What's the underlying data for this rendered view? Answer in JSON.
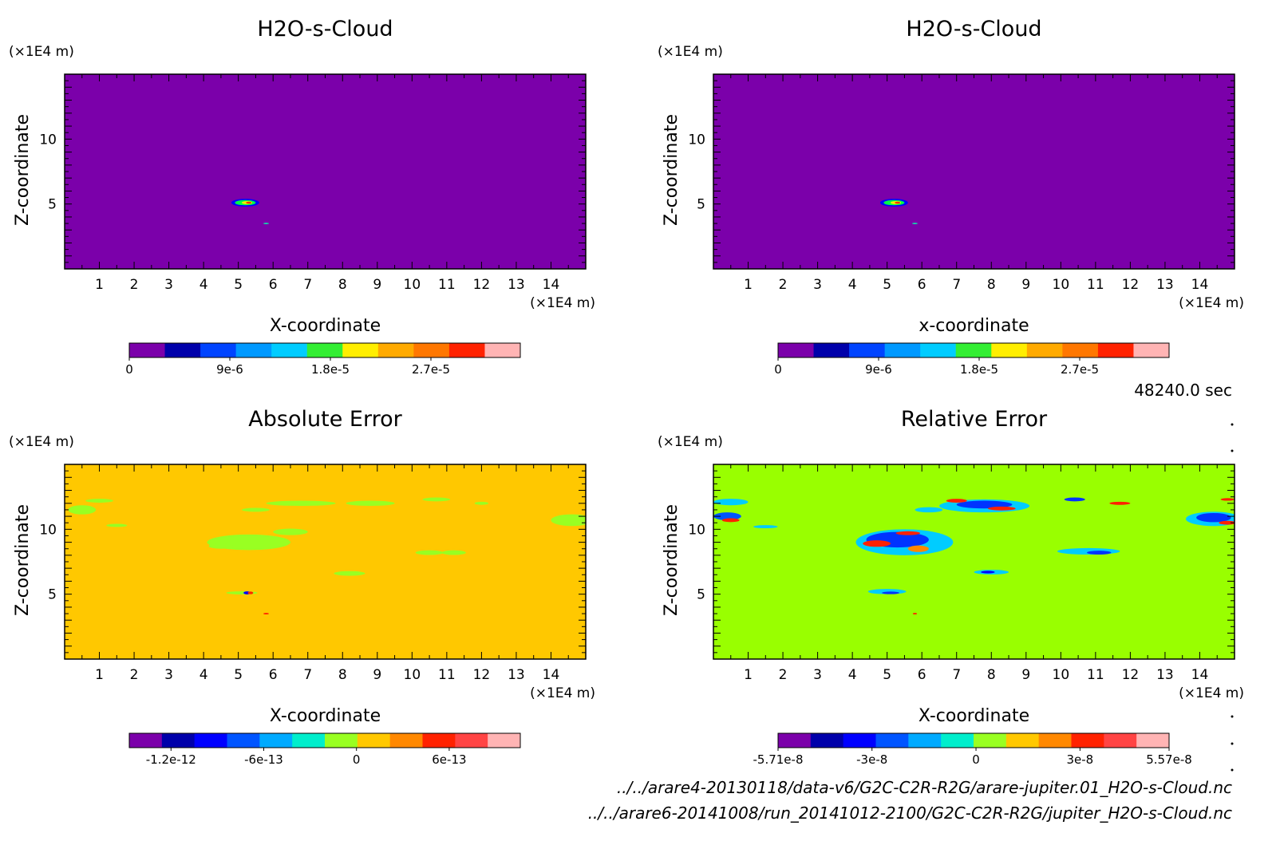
{
  "time_label": "48240.0 sec",
  "file_lines": [
    "../../arare4-20130118/data-v6/G2C-C2R-R2G/arare-jupiter.01_H2O-s-Cloud.nc",
    "../../arare6-20141008/run_20141012-2100/G2C-C2R-R2G/jupiter_H2O-s-Cloud.nc"
  ],
  "colors": {
    "frame": "#000000"
  },
  "chart_data": [
    {
      "type": "heatmap",
      "title": "H2O-s-Cloud",
      "xlabel": "X-coordinate",
      "ylabel": "Z-coordinate",
      "x_unit": "(×1E4 m)",
      "z_unit": "(×1E4 m)",
      "xlim": [
        0,
        15
      ],
      "ylim": [
        0,
        15
      ],
      "x_ticks": [
        "1",
        "2",
        "3",
        "4",
        "5",
        "6",
        "7",
        "8",
        "9",
        "10",
        "11",
        "12",
        "13",
        "14"
      ],
      "y_ticks": [
        "5",
        "10"
      ],
      "background": "#7b00aa",
      "features": [
        {
          "x": 5.2,
          "z": 5.1,
          "rx": 0.4,
          "rz": 0.3,
          "color": "#0000ff"
        },
        {
          "x": 5.2,
          "z": 5.1,
          "rx": 0.3,
          "rz": 0.2,
          "color": "#00ff44"
        },
        {
          "x": 5.25,
          "z": 5.1,
          "rx": 0.15,
          "rz": 0.12,
          "color": "#ffee00"
        },
        {
          "x": 5.3,
          "z": 5.1,
          "rx": 0.08,
          "rz": 0.08,
          "color": "#ff3300"
        },
        {
          "x": 5.8,
          "z": 3.5,
          "rx": 0.08,
          "rz": 0.05,
          "color": "#00ffaa"
        }
      ],
      "colorbar": {
        "colors": [
          "#7b00aa",
          "#0000aa",
          "#0044ff",
          "#0099ff",
          "#00ccff",
          "#33ee33",
          "#ffee00",
          "#ffaa00",
          "#ff7700",
          "#ff2200",
          "#ffb4b4"
        ],
        "min": 0,
        "max": 3.5e-05,
        "tick_values": [
          0,
          9e-06,
          1.8e-05,
          2.7e-05
        ],
        "tick_labels": [
          "0",
          "9e-6",
          "1.8e-5",
          "2.7e-5"
        ]
      }
    },
    {
      "type": "heatmap",
      "title": "H2O-s-Cloud",
      "xlabel": "x-coordinate",
      "ylabel": "Z-coordinate",
      "x_unit": "(×1E4 m)",
      "z_unit": "(×1E4 m)",
      "xlim": [
        0,
        15
      ],
      "ylim": [
        0,
        15
      ],
      "x_ticks": [
        "1",
        "2",
        "3",
        "4",
        "5",
        "6",
        "7",
        "8",
        "9",
        "10",
        "11",
        "12",
        "13",
        "14"
      ],
      "y_ticks": [
        "5",
        "10"
      ],
      "background": "#7b00aa",
      "features": [
        {
          "x": 5.2,
          "z": 5.1,
          "rx": 0.4,
          "rz": 0.3,
          "color": "#0000ff"
        },
        {
          "x": 5.2,
          "z": 5.1,
          "rx": 0.3,
          "rz": 0.2,
          "color": "#00ff44"
        },
        {
          "x": 5.25,
          "z": 5.1,
          "rx": 0.15,
          "rz": 0.12,
          "color": "#ffee00"
        },
        {
          "x": 5.3,
          "z": 5.1,
          "rx": 0.08,
          "rz": 0.08,
          "color": "#ff3300"
        },
        {
          "x": 5.8,
          "z": 3.5,
          "rx": 0.08,
          "rz": 0.05,
          "color": "#00ffaa"
        }
      ],
      "colorbar": {
        "colors": [
          "#7b00aa",
          "#0000aa",
          "#0044ff",
          "#0099ff",
          "#00ccff",
          "#33ee33",
          "#ffee00",
          "#ffaa00",
          "#ff7700",
          "#ff2200",
          "#ffb4b4"
        ],
        "min": 0,
        "max": 3.5e-05,
        "tick_values": [
          0,
          9e-06,
          1.8e-05,
          2.7e-05
        ],
        "tick_labels": [
          "0",
          "9e-6",
          "1.8e-5",
          "2.7e-5"
        ]
      }
    },
    {
      "type": "heatmap",
      "title": "Absolute Error",
      "xlabel": "X-coordinate",
      "ylabel": "Z-coordinate",
      "x_unit": "(×1E4 m)",
      "z_unit": "(×1E4 m)",
      "xlim": [
        0,
        15
      ],
      "ylim": [
        0,
        15
      ],
      "x_ticks": [
        "1",
        "2",
        "3",
        "4",
        "5",
        "6",
        "7",
        "8",
        "9",
        "10",
        "11",
        "12",
        "13",
        "14"
      ],
      "y_ticks": [
        "5",
        "10"
      ],
      "background": "#ffc800",
      "features": [
        {
          "x": 0.5,
          "z": 11.5,
          "rx": 0.4,
          "rz": 0.35,
          "color": "#99ff22"
        },
        {
          "x": 1.0,
          "z": 12.2,
          "rx": 0.4,
          "rz": 0.15,
          "color": "#99ff22"
        },
        {
          "x": 1.5,
          "z": 10.3,
          "rx": 0.3,
          "rz": 0.12,
          "color": "#99ff22"
        },
        {
          "x": 5.3,
          "z": 9.0,
          "rx": 1.2,
          "rz": 0.6,
          "color": "#99ff22"
        },
        {
          "x": 4.5,
          "z": 8.7,
          "rx": 0.35,
          "rz": 0.2,
          "color": "#99ff22"
        },
        {
          "x": 6.5,
          "z": 9.8,
          "rx": 0.5,
          "rz": 0.25,
          "color": "#99ff22"
        },
        {
          "x": 6.8,
          "z": 12.0,
          "rx": 1.0,
          "rz": 0.2,
          "color": "#99ff22"
        },
        {
          "x": 8.8,
          "z": 12.0,
          "rx": 0.7,
          "rz": 0.2,
          "color": "#99ff22"
        },
        {
          "x": 5.5,
          "z": 11.5,
          "rx": 0.4,
          "rz": 0.15,
          "color": "#99ff22"
        },
        {
          "x": 10.7,
          "z": 12.3,
          "rx": 0.4,
          "rz": 0.15,
          "color": "#99ff22"
        },
        {
          "x": 12.0,
          "z": 12.0,
          "rx": 0.2,
          "rz": 0.12,
          "color": "#99ff22"
        },
        {
          "x": 10.5,
          "z": 8.2,
          "rx": 0.4,
          "rz": 0.18,
          "color": "#99ff22"
        },
        {
          "x": 11.2,
          "z": 8.2,
          "rx": 0.35,
          "rz": 0.18,
          "color": "#99ff22"
        },
        {
          "x": 8.2,
          "z": 6.6,
          "rx": 0.45,
          "rz": 0.18,
          "color": "#99ff22"
        },
        {
          "x": 14.6,
          "z": 10.7,
          "rx": 0.6,
          "rz": 0.45,
          "color": "#99ff22"
        },
        {
          "x": 5.1,
          "z": 5.1,
          "rx": 0.45,
          "rz": 0.12,
          "color": "#99ff22"
        },
        {
          "x": 5.25,
          "z": 5.1,
          "rx": 0.1,
          "rz": 0.12,
          "color": "#0000ff"
        },
        {
          "x": 5.35,
          "z": 5.1,
          "rx": 0.08,
          "rz": 0.1,
          "color": "#ff2200"
        },
        {
          "x": 5.8,
          "z": 3.5,
          "rx": 0.08,
          "rz": 0.06,
          "color": "#ff2200"
        }
      ],
      "colorbar": {
        "colors": [
          "#7b00aa",
          "#0000aa",
          "#0000ff",
          "#0055ff",
          "#00aaff",
          "#00eecc",
          "#99ff22",
          "#ffc800",
          "#ff8800",
          "#ff2200",
          "#ff4444",
          "#ffb4b4"
        ],
        "min": -1.47e-12,
        "max": 1.06e-12,
        "tick_values": [
          -1.2e-12,
          -6e-13,
          0,
          6e-13
        ],
        "tick_labels": [
          "-1.2e-12",
          "-6e-13",
          "0",
          "6e-13"
        ]
      }
    },
    {
      "type": "heatmap",
      "title": "Relative Error",
      "xlabel": "X-coordinate",
      "ylabel": "Z-coordinate",
      "x_unit": "(×1E4 m)",
      "z_unit": "(×1E4 m)",
      "xlim": [
        0,
        15
      ],
      "ylim": [
        0,
        15
      ],
      "x_ticks": [
        "1",
        "2",
        "3",
        "4",
        "5",
        "6",
        "7",
        "8",
        "9",
        "10",
        "11",
        "12",
        "13",
        "14"
      ],
      "y_ticks": [
        "5",
        "10"
      ],
      "background": "#99ff00",
      "features": [
        {
          "x": 0.5,
          "z": 12.1,
          "rx": 0.5,
          "rz": 0.25,
          "color": "#00ccff"
        },
        {
          "x": 0.4,
          "z": 11.0,
          "rx": 0.4,
          "rz": 0.3,
          "color": "#0055ff"
        },
        {
          "x": 0.5,
          "z": 10.7,
          "rx": 0.25,
          "rz": 0.15,
          "color": "#ff2200"
        },
        {
          "x": 1.5,
          "z": 10.2,
          "rx": 0.35,
          "rz": 0.12,
          "color": "#00ccff"
        },
        {
          "x": 5.5,
          "z": 9.0,
          "rx": 1.4,
          "rz": 1.0,
          "color": "#00ccff"
        },
        {
          "x": 5.3,
          "z": 9.2,
          "rx": 0.9,
          "rz": 0.6,
          "color": "#0033ff"
        },
        {
          "x": 4.7,
          "z": 8.9,
          "rx": 0.4,
          "rz": 0.25,
          "color": "#ff2200"
        },
        {
          "x": 5.9,
          "z": 8.5,
          "rx": 0.3,
          "rz": 0.25,
          "color": "#ff8800"
        },
        {
          "x": 5.6,
          "z": 9.7,
          "rx": 0.35,
          "rz": 0.15,
          "color": "#ff2200"
        },
        {
          "x": 6.2,
          "z": 11.5,
          "rx": 0.4,
          "rz": 0.2,
          "color": "#00ccff"
        },
        {
          "x": 7.8,
          "z": 11.8,
          "rx": 1.3,
          "rz": 0.5,
          "color": "#00ccff"
        },
        {
          "x": 7.8,
          "z": 11.9,
          "rx": 0.8,
          "rz": 0.3,
          "color": "#0033ff"
        },
        {
          "x": 8.3,
          "z": 11.6,
          "rx": 0.4,
          "rz": 0.15,
          "color": "#ff2200"
        },
        {
          "x": 7.0,
          "z": 12.2,
          "rx": 0.3,
          "rz": 0.15,
          "color": "#ff2200"
        },
        {
          "x": 10.4,
          "z": 12.3,
          "rx": 0.3,
          "rz": 0.15,
          "color": "#0033ff"
        },
        {
          "x": 11.7,
          "z": 12.0,
          "rx": 0.3,
          "rz": 0.12,
          "color": "#ff2200"
        },
        {
          "x": 10.8,
          "z": 8.3,
          "rx": 0.9,
          "rz": 0.25,
          "color": "#00ccff"
        },
        {
          "x": 11.1,
          "z": 8.2,
          "rx": 0.35,
          "rz": 0.15,
          "color": "#0033ff"
        },
        {
          "x": 8.0,
          "z": 6.7,
          "rx": 0.5,
          "rz": 0.18,
          "color": "#00ccff"
        },
        {
          "x": 7.9,
          "z": 6.7,
          "rx": 0.2,
          "rz": 0.1,
          "color": "#0000ff"
        },
        {
          "x": 14.4,
          "z": 10.8,
          "rx": 0.8,
          "rz": 0.55,
          "color": "#00ccff"
        },
        {
          "x": 14.4,
          "z": 10.9,
          "rx": 0.5,
          "rz": 0.35,
          "color": "#0033ff"
        },
        {
          "x": 14.8,
          "z": 10.5,
          "rx": 0.25,
          "rz": 0.15,
          "color": "#ff2200"
        },
        {
          "x": 14.8,
          "z": 12.3,
          "rx": 0.2,
          "rz": 0.1,
          "color": "#ff2200"
        },
        {
          "x": 5.0,
          "z": 5.2,
          "rx": 0.55,
          "rz": 0.2,
          "color": "#00ccff"
        },
        {
          "x": 5.1,
          "z": 5.1,
          "rx": 0.25,
          "rz": 0.1,
          "color": "#0033ff"
        },
        {
          "x": 5.8,
          "z": 3.5,
          "rx": 0.06,
          "rz": 0.06,
          "color": "#ff2200"
        }
      ],
      "colorbar": {
        "colors": [
          "#7b00aa",
          "#0000aa",
          "#0000ff",
          "#0055ff",
          "#00aaff",
          "#00eecc",
          "#99ff22",
          "#ffc800",
          "#ff8800",
          "#ff2200",
          "#ff4444",
          "#ffb4b4"
        ],
        "min": -5.71e-08,
        "max": 5.57e-08,
        "tick_values": [
          -5.71e-08,
          -3e-08,
          0,
          3e-08,
          5.57e-08
        ],
        "tick_labels": [
          "-5.71e-8",
          "-3e-8",
          "0",
          "3e-8",
          "5.57e-8"
        ]
      }
    }
  ]
}
